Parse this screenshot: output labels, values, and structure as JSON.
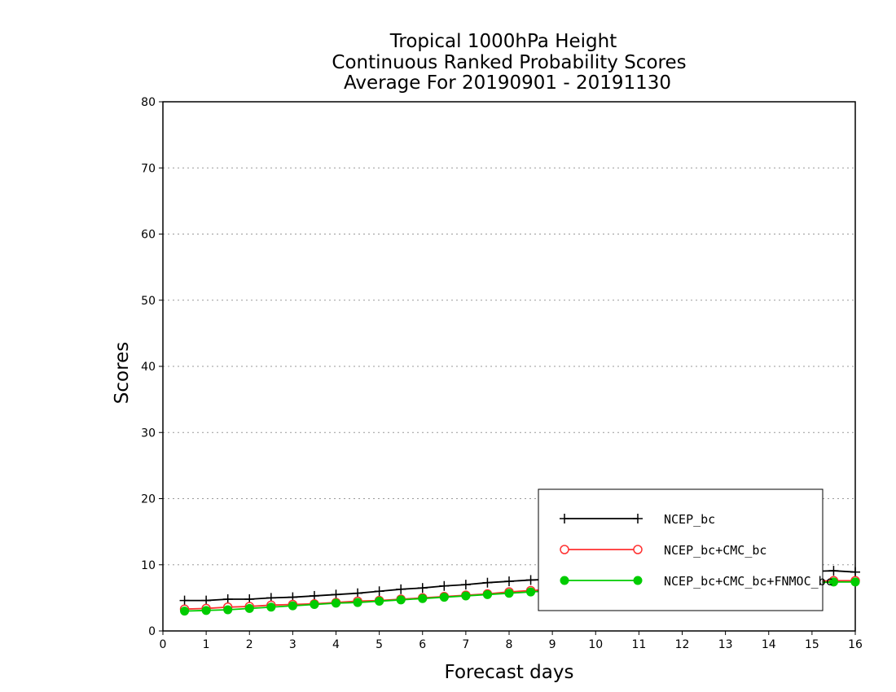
{
  "chart_data": {
    "type": "line",
    "title": [
      "Tropical 1000hPa Height",
      "Continuous Ranked Probability Scores",
      "Average For 20190901 - 20191130"
    ],
    "xlabel": "Forecast days",
    "ylabel": "Scores",
    "xlim": [
      0,
      16
    ],
    "ylim": [
      0,
      80
    ],
    "xticks": [
      "0",
      "1",
      "2",
      "3",
      "4",
      "5",
      "6",
      "7",
      "8",
      "9",
      "10",
      "11",
      "12",
      "13",
      "14",
      "15",
      "16"
    ],
    "yticks": [
      "0",
      "10",
      "20",
      "30",
      "40",
      "50",
      "60",
      "70",
      "80"
    ],
    "grid": "horizontal dotted",
    "legend_position": "bottom-right",
    "x": [
      0.5,
      1,
      1.5,
      2,
      2.5,
      3,
      3.5,
      4,
      4.5,
      5,
      5.5,
      6,
      6.5,
      7,
      7.5,
      8,
      8.5,
      9,
      9.5,
      10,
      10.5,
      11,
      11.5,
      12,
      12.5,
      13,
      13.5,
      14,
      14.5,
      15,
      15.5,
      16
    ],
    "series": [
      {
        "name": "NCEP_bc",
        "color": "#000000",
        "marker": "plus",
        "values": [
          4.6,
          4.6,
          4.8,
          4.8,
          5.0,
          5.1,
          5.3,
          5.5,
          5.7,
          6.0,
          6.3,
          6.5,
          6.8,
          7.0,
          7.3,
          7.5,
          7.7,
          7.8,
          7.9,
          8.0,
          8.1,
          8.2,
          8.3,
          8.4,
          8.5,
          8.6,
          8.7,
          8.8,
          8.9,
          9.0,
          9.1,
          8.9
        ]
      },
      {
        "name": "NCEP_bc+CMC_bc",
        "color": "#ff3030",
        "marker": "open-circle",
        "values": [
          3.3,
          3.4,
          3.6,
          3.7,
          3.9,
          4.0,
          4.1,
          4.3,
          4.5,
          4.6,
          4.8,
          5.0,
          5.2,
          5.4,
          5.6,
          5.9,
          6.1,
          6.3,
          6.4,
          6.5,
          6.6,
          6.7,
          6.8,
          6.9,
          7.0,
          7.1,
          7.2,
          7.3,
          7.4,
          7.5,
          7.6,
          7.6
        ]
      },
      {
        "name": "NCEP_bc+CMC_bc+FNMOC_bc",
        "color": "#00cc00",
        "marker": "filled-circle",
        "values": [
          3.0,
          3.1,
          3.2,
          3.4,
          3.6,
          3.8,
          4.0,
          4.2,
          4.3,
          4.5,
          4.7,
          4.9,
          5.1,
          5.3,
          5.5,
          5.7,
          5.9,
          6.1,
          6.2,
          6.3,
          6.4,
          6.5,
          6.6,
          6.7,
          6.8,
          6.9,
          7.0,
          7.1,
          7.2,
          7.3,
          7.4,
          7.4
        ]
      }
    ]
  }
}
